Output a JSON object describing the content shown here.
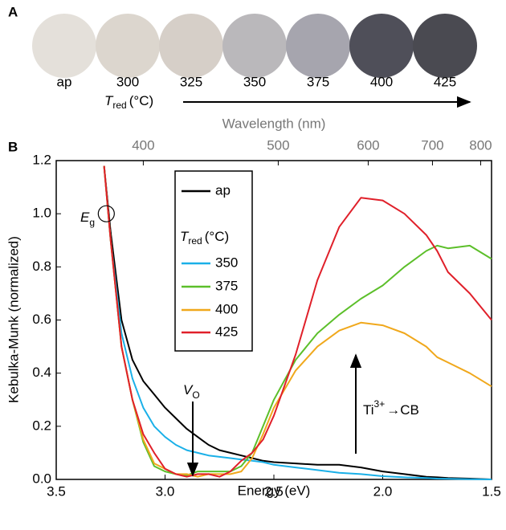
{
  "panel_a": {
    "label": "A",
    "samples": [
      {
        "label": "ap",
        "color": "#000000",
        "photo": "#e4e0da"
      },
      {
        "label": "300",
        "color": "#6a2bb0",
        "photo": "#dcd6ce"
      },
      {
        "label": "325",
        "color": "#4a5ad0",
        "photo": "#d6cfc8"
      },
      {
        "label": "350",
        "color": "#1ab0e8",
        "photo": "#bab8bb"
      },
      {
        "label": "375",
        "color": "#5cbf2a",
        "photo": "#a6a5ae"
      },
      {
        "label": "400",
        "color": "#f0a81c",
        "photo": "#4f4f59"
      },
      {
        "label": "425",
        "color": "#e0202a",
        "photo": "#4a4a51"
      }
    ],
    "axis_title": {
      "main": "T",
      "sub": "red",
      "unit": "(°C)"
    }
  },
  "chart_data": {
    "type": "line",
    "panel_label": "B",
    "xlabel": "Energy (eV)",
    "ylabel": "Kebulka-Munk (normalized)",
    "x2label": "Wavelength (nm)",
    "xlim": [
      3.5,
      1.5
    ],
    "ylim": [
      0,
      1.2
    ],
    "xticks": [
      3.5,
      {
        "value": 3,
        "label": "3.0"
      },
      2.5,
      {
        "value": 2,
        "label": "2.0"
      },
      1.5
    ],
    "yticks": [
      {
        "value": 0,
        "label": "0.0"
      },
      0.2,
      0.4,
      0.6,
      0.8,
      {
        "value": 1,
        "label": "1.0"
      },
      1.2
    ],
    "x2ticks": [
      400,
      500,
      600,
      700,
      800
    ],
    "x": [
      3.28,
      3.25,
      3.2,
      3.15,
      3.1,
      3.05,
      3.0,
      2.95,
      2.9,
      2.85,
      2.8,
      2.75,
      2.7,
      2.65,
      2.6,
      2.55,
      2.5,
      2.4,
      2.3,
      2.2,
      2.1,
      2.0,
      1.9,
      1.8,
      1.75,
      1.7,
      1.6,
      1.5
    ],
    "series": [
      {
        "name": "ap",
        "color": "#000000",
        "values": [
          1.18,
          0.93,
          0.6,
          0.45,
          0.37,
          0.32,
          0.27,
          0.23,
          0.19,
          0.16,
          0.13,
          0.11,
          0.1,
          0.09,
          0.08,
          0.07,
          0.065,
          0.06,
          0.055,
          0.055,
          0.045,
          0.03,
          0.02,
          0.01,
          0.008,
          0.005,
          0.003,
          0.0
        ]
      },
      {
        "name": "350",
        "color": "#1ab0e8",
        "values": [
          1.18,
          0.9,
          0.55,
          0.38,
          0.27,
          0.2,
          0.16,
          0.13,
          0.11,
          0.1,
          0.09,
          0.085,
          0.08,
          0.075,
          0.07,
          0.065,
          0.055,
          0.045,
          0.035,
          0.025,
          0.02,
          0.012,
          0.008,
          0.005,
          0.003,
          0.002,
          0.001,
          0.0
        ]
      },
      {
        "name": "375",
        "color": "#5cbf2a",
        "values": [
          1.18,
          0.9,
          0.5,
          0.3,
          0.14,
          0.05,
          0.03,
          0.02,
          0.015,
          0.03,
          0.03,
          0.03,
          0.03,
          0.05,
          0.1,
          0.2,
          0.3,
          0.45,
          0.55,
          0.62,
          0.68,
          0.73,
          0.8,
          0.86,
          0.88,
          0.87,
          0.88,
          0.83
        ]
      },
      {
        "name": "400",
        "color": "#f0a81c",
        "values": [
          1.18,
          0.9,
          0.5,
          0.3,
          0.15,
          0.06,
          0.04,
          0.02,
          0.02,
          0.01,
          0.02,
          0.02,
          0.02,
          0.03,
          0.08,
          0.17,
          0.27,
          0.41,
          0.5,
          0.56,
          0.59,
          0.58,
          0.55,
          0.5,
          0.46,
          0.44,
          0.4,
          0.35
        ]
      },
      {
        "name": "425",
        "color": "#e0202a",
        "values": [
          1.18,
          0.9,
          0.5,
          0.3,
          0.17,
          0.1,
          0.04,
          0.02,
          0.01,
          0.02,
          0.02,
          0.01,
          0.03,
          0.07,
          0.1,
          0.15,
          0.24,
          0.47,
          0.75,
          0.95,
          1.06,
          1.05,
          1.0,
          0.92,
          0.86,
          0.78,
          0.7,
          0.6
        ]
      }
    ],
    "legend_title": {
      "main": "T",
      "sub": "red",
      "unit": "(°C)"
    },
    "annotations": {
      "eg": {
        "main": "E",
        "sub": "g"
      },
      "vo": {
        "main": "V",
        "sub": "O"
      },
      "ti": {
        "main": "Ti",
        "sup": "3+",
        "rest": "→CB"
      }
    }
  }
}
